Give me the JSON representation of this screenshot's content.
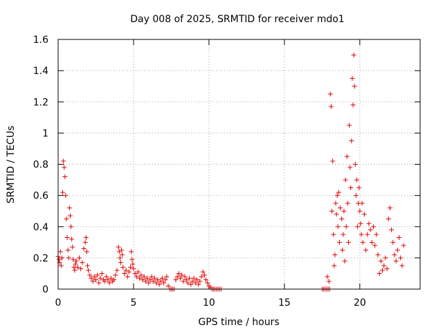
{
  "chart_data": {
    "type": "scatter",
    "title": "Day 008 of 2025, SRMTID for receiver mdo1",
    "xlabel": "GPS time / hours",
    "ylabel": "SRMTID / TECUs",
    "xlim": [
      0,
      24
    ],
    "ylim": [
      0,
      1.6
    ],
    "xticks": [
      0,
      5,
      10,
      15,
      20
    ],
    "xtick_labels": [
      "0",
      "5",
      "10",
      "15",
      "20"
    ],
    "yticks": [
      0,
      0.2,
      0.4,
      0.6,
      0.8,
      1,
      1.2,
      1.4,
      1.6
    ],
    "ytick_labels": [
      "0",
      "0.2",
      "0.4",
      "0.6",
      "0.8",
      "1",
      "1.2",
      "1.4",
      "1.6"
    ],
    "grid": true,
    "marker": "+",
    "color": "#e00000",
    "series": [
      {
        "name": "SRMTID",
        "points": [
          [
            0.0,
            0.21
          ],
          [
            0.05,
            0.19
          ],
          [
            0.1,
            0.17
          ],
          [
            0.15,
            0.24
          ],
          [
            0.2,
            0.15
          ],
          [
            0.25,
            0.2
          ],
          [
            0.3,
            0.62
          ],
          [
            0.35,
            0.82
          ],
          [
            0.4,
            0.78
          ],
          [
            0.45,
            0.72
          ],
          [
            0.5,
            0.6
          ],
          [
            0.55,
            0.45
          ],
          [
            0.6,
            0.33
          ],
          [
            0.65,
            0.25
          ],
          [
            0.7,
            0.2
          ],
          [
            0.75,
            0.52
          ],
          [
            0.8,
            0.47
          ],
          [
            0.85,
            0.4
          ],
          [
            0.9,
            0.32
          ],
          [
            0.95,
            0.27
          ],
          [
            1.0,
            0.19
          ],
          [
            1.05,
            0.14
          ],
          [
            1.1,
            0.12
          ],
          [
            1.15,
            0.16
          ],
          [
            1.2,
            0.18
          ],
          [
            1.3,
            0.14
          ],
          [
            1.4,
            0.2
          ],
          [
            1.5,
            0.13
          ],
          [
            1.6,
            0.17
          ],
          [
            1.7,
            0.26
          ],
          [
            1.8,
            0.3
          ],
          [
            1.85,
            0.33
          ],
          [
            1.9,
            0.24
          ],
          [
            1.95,
            0.15
          ],
          [
            2.0,
            0.12
          ],
          [
            2.1,
            0.09
          ],
          [
            2.2,
            0.07
          ],
          [
            2.3,
            0.05
          ],
          [
            2.4,
            0.08
          ],
          [
            2.5,
            0.06
          ],
          [
            2.6,
            0.09
          ],
          [
            2.7,
            0.04
          ],
          [
            2.8,
            0.07
          ],
          [
            2.9,
            0.1
          ],
          [
            3.0,
            0.06
          ],
          [
            3.1,
            0.05
          ],
          [
            3.2,
            0.08
          ],
          [
            3.3,
            0.06
          ],
          [
            3.4,
            0.04
          ],
          [
            3.5,
            0.07
          ],
          [
            3.6,
            0.05
          ],
          [
            3.7,
            0.06
          ],
          [
            3.8,
            0.09
          ],
          [
            3.9,
            0.12
          ],
          [
            4.0,
            0.27
          ],
          [
            4.05,
            0.24
          ],
          [
            4.1,
            0.2
          ],
          [
            4.15,
            0.17
          ],
          [
            4.2,
            0.25
          ],
          [
            4.25,
            0.22
          ],
          [
            4.3,
            0.14
          ],
          [
            4.4,
            0.1
          ],
          [
            4.5,
            0.12
          ],
          [
            4.6,
            0.08
          ],
          [
            4.7,
            0.11
          ],
          [
            4.8,
            0.14
          ],
          [
            4.85,
            0.24
          ],
          [
            4.9,
            0.19
          ],
          [
            4.95,
            0.16
          ],
          [
            5.0,
            0.13
          ],
          [
            5.1,
            0.1
          ],
          [
            5.2,
            0.08
          ],
          [
            5.3,
            0.11
          ],
          [
            5.4,
            0.07
          ],
          [
            5.5,
            0.09
          ],
          [
            5.6,
            0.06
          ],
          [
            5.7,
            0.08
          ],
          [
            5.8,
            0.05
          ],
          [
            5.9,
            0.07
          ],
          [
            6.0,
            0.04
          ],
          [
            6.1,
            0.06
          ],
          [
            6.2,
            0.08
          ],
          [
            6.3,
            0.05
          ],
          [
            6.4,
            0.07
          ],
          [
            6.5,
            0.04
          ],
          [
            6.6,
            0.06
          ],
          [
            6.7,
            0.03
          ],
          [
            6.8,
            0.05
          ],
          [
            6.9,
            0.07
          ],
          [
            7.0,
            0.04
          ],
          [
            7.1,
            0.06
          ],
          [
            7.2,
            0.08
          ],
          [
            7.3,
            0.02
          ],
          [
            7.4,
            0.0
          ],
          [
            7.5,
            0.0
          ],
          [
            7.6,
            0.0
          ],
          [
            7.7,
            0.0
          ],
          [
            7.8,
            0.06
          ],
          [
            7.9,
            0.08
          ],
          [
            8.0,
            0.1
          ],
          [
            8.1,
            0.07
          ],
          [
            8.2,
            0.09
          ],
          [
            8.3,
            0.05
          ],
          [
            8.4,
            0.08
          ],
          [
            8.5,
            0.06
          ],
          [
            8.6,
            0.04
          ],
          [
            8.7,
            0.07
          ],
          [
            8.8,
            0.03
          ],
          [
            8.9,
            0.05
          ],
          [
            9.0,
            0.07
          ],
          [
            9.1,
            0.04
          ],
          [
            9.2,
            0.06
          ],
          [
            9.3,
            0.03
          ],
          [
            9.4,
            0.05
          ],
          [
            9.5,
            0.08
          ],
          [
            9.6,
            0.11
          ],
          [
            9.7,
            0.09
          ],
          [
            9.8,
            0.06
          ],
          [
            9.9,
            0.04
          ],
          [
            10.0,
            0.02
          ],
          [
            10.1,
            0.01
          ],
          [
            10.2,
            0.0
          ],
          [
            10.3,
            0.0
          ],
          [
            10.4,
            0.0
          ],
          [
            10.5,
            0.0
          ],
          [
            10.6,
            0.0
          ],
          [
            10.7,
            0.0
          ],
          [
            10.8,
            0.0
          ],
          [
            17.5,
            0.0
          ],
          [
            17.6,
            0.0
          ],
          [
            17.7,
            0.0
          ],
          [
            17.8,
            0.0
          ],
          [
            17.85,
            0.08
          ],
          [
            17.9,
            0.0
          ],
          [
            17.95,
            0.05
          ],
          [
            18.0,
            0.0
          ],
          [
            18.05,
            1.25
          ],
          [
            18.1,
            1.17
          ],
          [
            18.15,
            0.5
          ],
          [
            18.2,
            0.82
          ],
          [
            18.25,
            0.35
          ],
          [
            18.3,
            0.15
          ],
          [
            18.35,
            0.22
          ],
          [
            18.4,
            0.55
          ],
          [
            18.45,
            0.48
          ],
          [
            18.5,
            0.6
          ],
          [
            18.55,
            0.4
          ],
          [
            18.6,
            0.62
          ],
          [
            18.65,
            0.3
          ],
          [
            18.7,
            0.52
          ],
          [
            18.8,
            0.45
          ],
          [
            18.85,
            0.25
          ],
          [
            18.9,
            0.35
          ],
          [
            18.95,
            0.5
          ],
          [
            19.0,
            0.18
          ],
          [
            19.05,
            0.7
          ],
          [
            19.1,
            0.4
          ],
          [
            19.15,
            0.85
          ],
          [
            19.2,
            0.55
          ],
          [
            19.25,
            0.3
          ],
          [
            19.3,
            1.05
          ],
          [
            19.35,
            0.78
          ],
          [
            19.4,
            0.65
          ],
          [
            19.45,
            0.95
          ],
          [
            19.5,
            1.35
          ],
          [
            19.55,
            1.18
          ],
          [
            19.6,
            1.5
          ],
          [
            19.65,
            1.3
          ],
          [
            19.7,
            0.8
          ],
          [
            19.75,
            0.6
          ],
          [
            19.8,
            0.7
          ],
          [
            19.85,
            0.4
          ],
          [
            19.9,
            0.55
          ],
          [
            19.95,
            0.65
          ],
          [
            20.0,
            0.5
          ],
          [
            20.05,
            0.42
          ],
          [
            20.1,
            0.35
          ],
          [
            20.15,
            0.55
          ],
          [
            20.2,
            0.3
          ],
          [
            20.3,
            0.48
          ],
          [
            20.4,
            0.25
          ],
          [
            20.5,
            0.35
          ],
          [
            20.6,
            0.42
          ],
          [
            20.7,
            0.38
          ],
          [
            20.8,
            0.3
          ],
          [
            20.9,
            0.4
          ],
          [
            21.0,
            0.28
          ],
          [
            21.1,
            0.35
          ],
          [
            21.2,
            0.22
          ],
          [
            21.3,
            0.1
          ],
          [
            21.4,
            0.18
          ],
          [
            21.5,
            0.12
          ],
          [
            21.6,
            0.15
          ],
          [
            21.7,
            0.2
          ],
          [
            21.8,
            0.13
          ],
          [
            21.9,
            0.45
          ],
          [
            22.0,
            0.52
          ],
          [
            22.1,
            0.38
          ],
          [
            22.2,
            0.3
          ],
          [
            22.3,
            0.22
          ],
          [
            22.4,
            0.18
          ],
          [
            22.5,
            0.25
          ],
          [
            22.6,
            0.33
          ],
          [
            22.7,
            0.2
          ],
          [
            22.8,
            0.15
          ],
          [
            22.9,
            0.28
          ]
        ]
      }
    ]
  }
}
